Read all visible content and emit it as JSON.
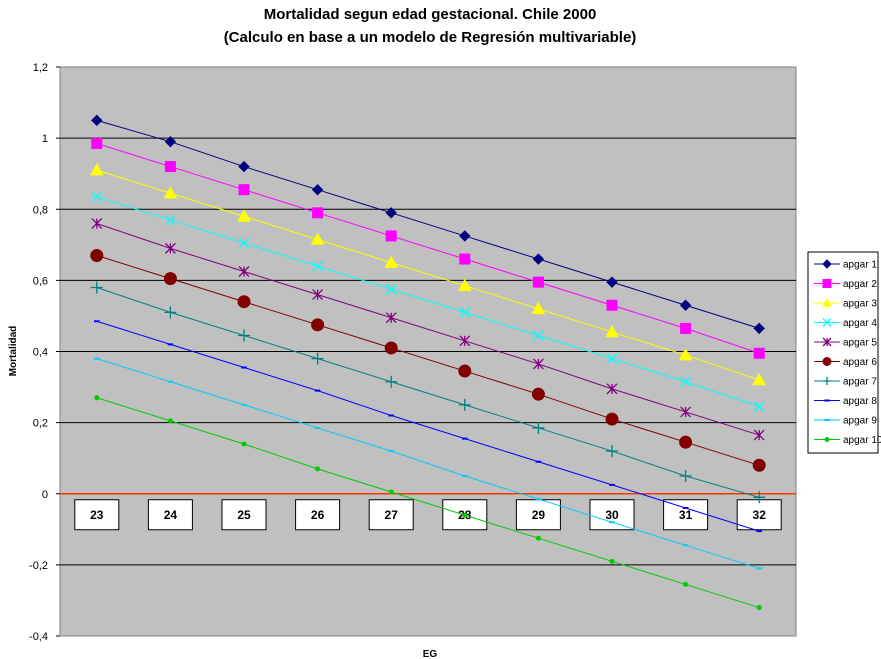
{
  "chart_data": {
    "type": "line",
    "title": "Mortalidad segun edad gestacional. Chile 2000",
    "subtitle": "(Calculo en base a un modelo de Regresión multivariable)",
    "xlabel": "EG",
    "ylabel": "Mortalidad",
    "categories": [
      "23",
      "24",
      "25",
      "26",
      "27",
      "28",
      "29",
      "30",
      "31",
      "32"
    ],
    "ylim": [
      -0.4,
      1.2
    ],
    "yticks": [
      "-0,4",
      "-0,2",
      "0",
      "0,2",
      "0,4",
      "0,6",
      "0,8",
      "1",
      "1,2"
    ],
    "ytick_values": [
      -0.4,
      -0.2,
      0,
      0.2,
      0.4,
      0.6,
      0.8,
      1,
      1.2
    ],
    "grid": true,
    "legend_position": "right",
    "plot_background": "#c0c0c0",
    "zero_line_color": "#ff3300",
    "series": [
      {
        "name": "apgar 1",
        "color": "#000080",
        "marker": "diamond",
        "values": [
          1.05,
          0.99,
          0.92,
          0.855,
          0.79,
          0.725,
          0.66,
          0.595,
          0.53,
          0.465
        ]
      },
      {
        "name": "apgar 2",
        "color": "#ff00ff",
        "marker": "square",
        "values": [
          0.985,
          0.92,
          0.855,
          0.79,
          0.725,
          0.66,
          0.595,
          0.53,
          0.465,
          0.395
        ]
      },
      {
        "name": "apgar 3",
        "color": "#ffff00",
        "marker": "triangle",
        "values": [
          0.91,
          0.845,
          0.78,
          0.715,
          0.65,
          0.585,
          0.52,
          0.455,
          0.39,
          0.32
        ]
      },
      {
        "name": "apgar 4",
        "color": "#00ffff",
        "marker": "x",
        "values": [
          0.835,
          0.77,
          0.705,
          0.64,
          0.575,
          0.51,
          0.445,
          0.38,
          0.315,
          0.245
        ]
      },
      {
        "name": "apgar 5",
        "color": "#800080",
        "marker": "star",
        "values": [
          0.76,
          0.69,
          0.625,
          0.56,
          0.495,
          0.43,
          0.365,
          0.295,
          0.23,
          0.165
        ]
      },
      {
        "name": "apgar 6",
        "color": "#800000",
        "marker": "circle",
        "values": [
          0.67,
          0.605,
          0.54,
          0.475,
          0.41,
          0.345,
          0.28,
          0.21,
          0.145,
          0.08
        ]
      },
      {
        "name": "apgar 7",
        "color": "#008080",
        "marker": "plus",
        "values": [
          0.58,
          0.51,
          0.445,
          0.38,
          0.315,
          0.25,
          0.185,
          0.12,
          0.05,
          -0.01
        ]
      },
      {
        "name": "apgar 8",
        "color": "#0000ff",
        "marker": "dash",
        "values": [
          0.485,
          0.42,
          0.355,
          0.29,
          0.22,
          0.155,
          0.09,
          0.025,
          -0.04,
          -0.105
        ]
      },
      {
        "name": "apgar 9",
        "color": "#00ccff",
        "marker": "dash",
        "values": [
          0.38,
          0.315,
          0.25,
          0.185,
          0.12,
          0.05,
          -0.015,
          -0.08,
          -0.145,
          -0.21
        ]
      },
      {
        "name": "apgar 10",
        "color": "#00cc00",
        "marker": "dot",
        "values": [
          0.27,
          0.205,
          0.14,
          0.07,
          0.005,
          -0.06,
          -0.125,
          -0.19,
          -0.255,
          -0.32
        ]
      }
    ]
  }
}
